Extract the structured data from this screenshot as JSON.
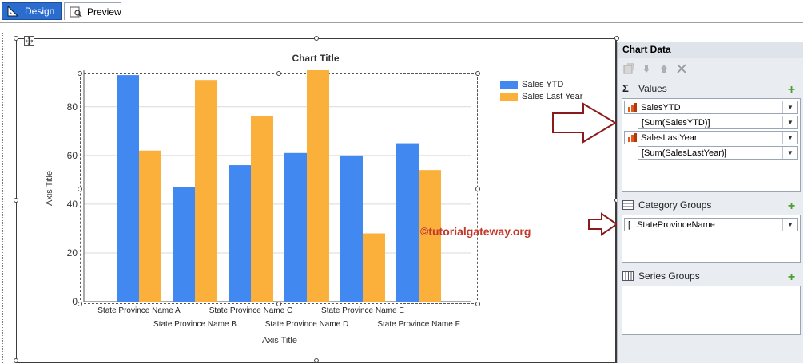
{
  "tabs": [
    {
      "label": "Design",
      "icon": "design-ruler-icon",
      "active": true
    },
    {
      "label": "Preview",
      "icon": "preview-icon",
      "active": false
    }
  ],
  "chart": {
    "title": "Chart Title",
    "watermark": "©tutorialgateway.org",
    "colors": {
      "sales_ytd": "#4189f0",
      "sales_last_year": "#fbb03b"
    }
  },
  "chart_data": {
    "type": "bar",
    "title": "Chart Title",
    "xlabel": "Axis Title",
    "ylabel": "Axis Title",
    "ylim": [
      0,
      95
    ],
    "yticks": [
      0,
      20,
      40,
      60,
      80
    ],
    "categories": [
      "State Province Name A",
      "State Province Name B",
      "State Province Name C",
      "State Province Name D",
      "State Province Name E",
      "State Province Name F"
    ],
    "series": [
      {
        "name": "Sales YTD",
        "color": "#4189f0",
        "values": [
          93,
          47,
          56,
          61,
          60,
          65
        ]
      },
      {
        "name": "Sales Last Year",
        "color": "#fbb03b",
        "values": [
          62,
          91,
          76,
          95,
          28,
          54
        ]
      }
    ],
    "legend": "top-right",
    "grid": true
  },
  "panel": {
    "title": "Chart Data",
    "toolbar": [
      "properties-icon",
      "move-down-icon",
      "move-up-icon",
      "delete-icon"
    ],
    "values": {
      "label": "Values",
      "icon": "sigma-icon",
      "items": [
        {
          "field": "SalesYTD",
          "expression": "[Sum(SalesYTD)]"
        },
        {
          "field": "SalesLastYear",
          "expression": "[Sum(SalesLastYear)]"
        }
      ]
    },
    "category_groups": {
      "label": "Category Groups",
      "icon": "category-groups-icon",
      "items": [
        {
          "field": "StateProvinceName",
          "prefix": "["
        }
      ]
    },
    "series_groups": {
      "label": "Series Groups",
      "icon": "series-groups-icon",
      "items": []
    }
  }
}
